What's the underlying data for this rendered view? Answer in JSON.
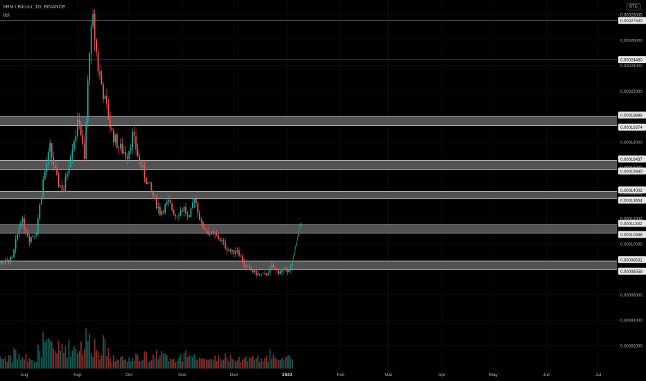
{
  "header": {
    "symbol": "SRM / Bitcoin, 1D, BINANCE",
    "volume_label": "Vol",
    "currency_badge": "BTC"
  },
  "colors": {
    "up": "#26a69a",
    "down": "#ef5350",
    "zone": "#6e6e6e",
    "arrow": "#2e9e5a",
    "grid": "#0b0b0b",
    "text": "#b2b5be"
  },
  "chart_data": {
    "type": "candlestick",
    "title": "SRM / Bitcoin, 1D, BINANCE",
    "y_ticks": [
      "0.00028000",
      "0.00026000",
      "0.00024000",
      "0.00022000",
      "0.00020000",
      "0.00018000",
      "0.00016000",
      "0.00014000",
      "0.00012000",
      "0.00010000",
      "0.00008000",
      "0.00006000",
      "0.00004000",
      "0.00002000"
    ],
    "y_tick_values": [
      0.00028,
      0.00026,
      0.00024,
      0.00022,
      0.0002,
      0.00018,
      0.00016,
      0.00014,
      0.00012,
      0.0001,
      8e-05,
      6e-05,
      4e-05,
      2e-05
    ],
    "x_ticks": [
      "Aug",
      "Sep",
      "Oct",
      "Nov",
      "Dec",
      "2022",
      "Feb",
      "Mar",
      "Apr",
      "May",
      "Jun",
      "Jul"
    ],
    "x_tick_dates": [
      "2021-08-01",
      "2021-09-01",
      "2021-10-01",
      "2021-11-01",
      "2021-12-01",
      "2022-01-01",
      "2022-02-01",
      "2022-03-01",
      "2022-04-01",
      "2022-05-01",
      "2022-06-01",
      "2022-07-01"
    ],
    "horizontal_lines": [
      {
        "label": "0.00027530",
        "value": 0.0002753
      },
      {
        "label": "0.00024460",
        "value": 0.0002446
      }
    ],
    "zones": [
      {
        "top_label": "0.00019889",
        "bottom_label": "0.00019374",
        "top": 0.00019889,
        "bottom": 0.00019374
      },
      {
        "top_label": "0.00016437",
        "bottom_label": "0.00015940",
        "top": 0.00016437,
        "bottom": 0.0001594
      },
      {
        "top_label": "0.00014002",
        "bottom_label": "0.00013654",
        "top": 0.00014002,
        "bottom": 0.00013654
      },
      {
        "top_label": "0.00011382",
        "bottom_label": "0.00010948",
        "top": 0.00011382,
        "bottom": 0.00010948
      },
      {
        "top_label": "0.00008531",
        "bottom_label": "0.00008058",
        "top": 8.531e-05,
        "bottom": 8.058e-05
      }
    ],
    "projection_arrow": {
      "from_date": "2022-01-04",
      "from_value": 8.5e-05,
      "to_date": "2022-01-09",
      "to_value": 0.000116
    },
    "price_path": [
      [
        "2021-07-12",
        8.6e-05
      ],
      [
        "2021-07-20",
        8.5e-05
      ],
      [
        "2021-07-25",
        8.8e-05
      ],
      [
        "2021-07-30",
        0.00012
      ],
      [
        "2021-08-04",
        0.000104
      ],
      [
        "2021-08-08",
        0.00011
      ],
      [
        "2021-08-12",
        0.00015
      ],
      [
        "2021-08-16",
        0.000175
      ],
      [
        "2021-08-20",
        0.00015
      ],
      [
        "2021-08-24",
        0.000142
      ],
      [
        "2021-08-28",
        0.000172
      ],
      [
        "2021-09-02",
        0.000198
      ],
      [
        "2021-09-05",
        0.000165
      ],
      [
        "2021-09-08",
        0.000255
      ],
      [
        "2021-09-10",
        0.000275
      ],
      [
        "2021-09-13",
        0.000238
      ],
      [
        "2021-09-17",
        0.000212
      ],
      [
        "2021-09-21",
        0.000187
      ],
      [
        "2021-09-25",
        0.000176
      ],
      [
        "2021-09-30",
        0.00017
      ],
      [
        "2021-10-03",
        0.000185
      ],
      [
        "2021-10-07",
        0.000165
      ],
      [
        "2021-10-11",
        0.00015
      ],
      [
        "2021-10-15",
        0.000138
      ],
      [
        "2021-10-19",
        0.000125
      ],
      [
        "2021-10-24",
        0.000132
      ],
      [
        "2021-10-28",
        0.000123
      ],
      [
        "2021-11-02",
        0.000128
      ],
      [
        "2021-11-05",
        0.000118
      ],
      [
        "2021-11-08",
        0.000138
      ],
      [
        "2021-11-12",
        0.000115
      ],
      [
        "2021-11-17",
        0.000108
      ],
      [
        "2021-11-22",
        0.000105
      ],
      [
        "2021-11-26",
        9.8e-05
      ],
      [
        "2021-11-30",
        9.3e-05
      ],
      [
        "2021-12-03",
        9.6e-05
      ],
      [
        "2021-12-07",
        8.3e-05
      ],
      [
        "2021-12-11",
        7.9e-05
      ],
      [
        "2021-12-15",
        7.6e-05
      ],
      [
        "2021-12-19",
        7.5e-05
      ],
      [
        "2021-12-23",
        8.2e-05
      ],
      [
        "2021-12-27",
        7.8e-05
      ],
      [
        "2021-12-31",
        7.9e-05
      ],
      [
        "2022-01-04",
        8.3e-05
      ]
    ]
  }
}
